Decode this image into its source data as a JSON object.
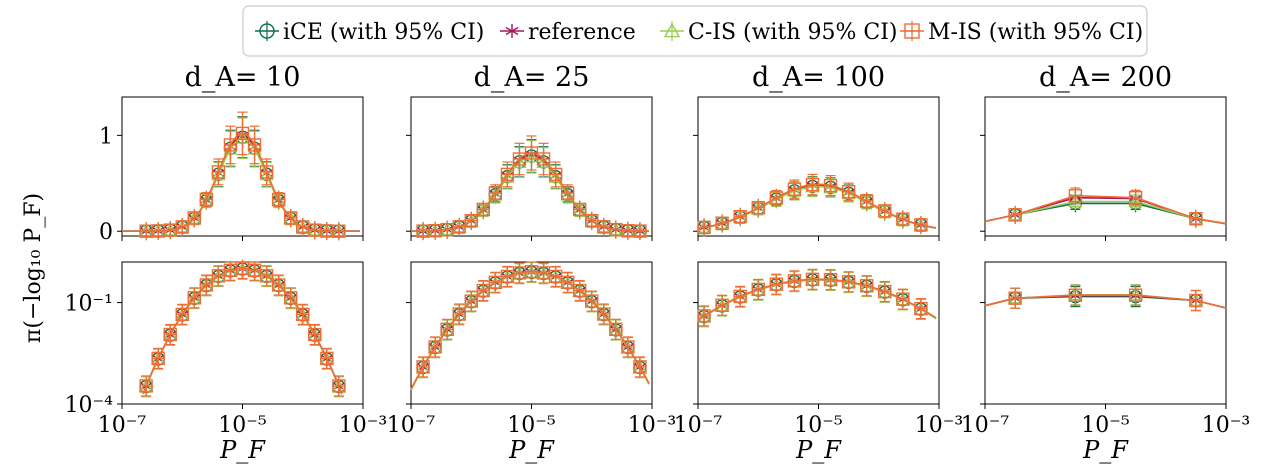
{
  "legend": {
    "entries": [
      {
        "label": "iCE (with 95% CI)",
        "color": "#0b6e4f",
        "marker": "circle"
      },
      {
        "label": "reference",
        "color": "#a3195b",
        "marker": "star"
      },
      {
        "label": "C-IS (with 95% CI)",
        "color": "#9acd55",
        "marker": "triangle"
      },
      {
        "label": "M-IS (with 95% CI)",
        "color": "#ef6c35",
        "marker": "square"
      }
    ]
  },
  "y_axis_label": "π(−log₁₀ P_F)",
  "x_axis_label": "P_F",
  "colors": {
    "iCE": "#0b6e4f",
    "reference": "#a3195b",
    "CIS": "#9acd55",
    "MIS": "#ef6c35"
  },
  "chart_data": [
    {
      "type": "line",
      "title": "d_A= 10",
      "yscale": "linear",
      "xscale": "log",
      "xlabel": "",
      "ylabel": "π(−log₁₀ P_F)",
      "ylim": [
        -0.05,
        1.4
      ],
      "yticks": [
        {
          "value": 0,
          "label": "0"
        },
        {
          "value": 1,
          "label": "1"
        }
      ],
      "xticks": [],
      "mu": 5,
      "sigma": 0.4,
      "amp": 1.0,
      "x_log10": [
        -6.6,
        -6.4,
        -6.2,
        -6.0,
        -5.8,
        -5.6,
        -5.4,
        -5.2,
        -5.0,
        -4.8,
        -4.6,
        -4.4,
        -4.2,
        -4.0,
        -3.8,
        -3.6,
        -3.4
      ]
    },
    {
      "type": "line",
      "title": "d_A= 25",
      "yscale": "linear",
      "xscale": "log",
      "xlabel": "",
      "ylabel": "",
      "ylim": [
        -0.05,
        1.4
      ],
      "yticks": [
        {
          "value": 0,
          "label": ""
        },
        {
          "value": 1,
          "label": ""
        }
      ],
      "xticks": [],
      "mu": 5,
      "sigma": 0.5,
      "amp": 0.8,
      "x_log10": [
        -6.8,
        -6.6,
        -6.4,
        -6.2,
        -6.0,
        -5.8,
        -5.6,
        -5.4,
        -5.2,
        -5.0,
        -4.8,
        -4.6,
        -4.4,
        -4.2,
        -4.0,
        -3.8,
        -3.6,
        -3.4,
        -3.2
      ]
    },
    {
      "type": "line",
      "title": "d_A= 100",
      "yscale": "linear",
      "xscale": "log",
      "xlabel": "",
      "ylabel": "",
      "ylim": [
        -0.05,
        1.4
      ],
      "yticks": [
        {
          "value": 0,
          "label": ""
        },
        {
          "value": 1,
          "label": ""
        }
      ],
      "xticks": [],
      "mu": 5,
      "sigma": 0.85,
      "amp": 0.48,
      "x_log10": [
        -6.9,
        -6.6,
        -6.3,
        -6.0,
        -5.7,
        -5.4,
        -5.1,
        -4.8,
        -4.5,
        -4.2,
        -3.9,
        -3.6,
        -3.3
      ]
    },
    {
      "type": "line",
      "title": "d_A= 200",
      "yscale": "linear",
      "xscale": "log",
      "xlabel": "",
      "ylabel": "",
      "ylim": [
        -0.05,
        1.4
      ],
      "yticks": [
        {
          "value": 0,
          "label": ""
        },
        {
          "value": 1,
          "label": ""
        }
      ],
      "xticks": [],
      "series_points": {
        "x_log10": [
          -6.5,
          -5.5,
          -4.5,
          -3.5
        ],
        "iCE": [
          0.17,
          0.29,
          0.29,
          0.13
        ],
        "reference": [
          0.17,
          0.35,
          0.34,
          0.13
        ],
        "CIS": [
          0.17,
          0.31,
          0.31,
          0.13
        ],
        "MIS": [
          0.17,
          0.37,
          0.35,
          0.13
        ]
      }
    },
    {
      "type": "line",
      "title": "",
      "yscale": "log",
      "xscale": "log",
      "xlabel": "P_F",
      "ylabel": "π(−log₁₀ P_F)",
      "ylim_log10": [
        -4,
        0.2
      ],
      "yticks": [
        {
          "value": -1,
          "label": "10⁻¹"
        },
        {
          "value": -4,
          "label": "10⁻⁴"
        }
      ],
      "xticks": [
        {
          "value": -7,
          "label": "10⁻⁷"
        },
        {
          "value": -5,
          "label": "10⁻⁵"
        },
        {
          "value": -3,
          "label": "10⁻³"
        }
      ],
      "mu": 5,
      "sigma": 0.4,
      "amp": 1.0,
      "x_log10": [
        -6.6,
        -6.4,
        -6.2,
        -6.0,
        -5.8,
        -5.6,
        -5.4,
        -5.2,
        -5.0,
        -4.8,
        -4.6,
        -4.4,
        -4.2,
        -4.0,
        -3.8,
        -3.6,
        -3.4
      ]
    },
    {
      "type": "line",
      "title": "",
      "yscale": "log",
      "xscale": "log",
      "xlabel": "P_F",
      "ylabel": "",
      "ylim_log10": [
        -4,
        0.2
      ],
      "yticks": [
        {
          "value": -1,
          "label": ""
        },
        {
          "value": -4,
          "label": ""
        }
      ],
      "xticks": [
        {
          "value": -7,
          "label": "10⁻⁷"
        },
        {
          "value": -5,
          "label": "10⁻⁵"
        },
        {
          "value": -3,
          "label": "10⁻³"
        }
      ],
      "mu": 5,
      "sigma": 0.5,
      "amp": 0.8,
      "x_log10": [
        -6.8,
        -6.6,
        -6.4,
        -6.2,
        -6.0,
        -5.8,
        -5.6,
        -5.4,
        -5.2,
        -5.0,
        -4.8,
        -4.6,
        -4.4,
        -4.2,
        -4.0,
        -3.8,
        -3.6,
        -3.4,
        -3.2
      ]
    },
    {
      "type": "line",
      "title": "",
      "yscale": "log",
      "xscale": "log",
      "xlabel": "P_F",
      "ylabel": "",
      "ylim_log10": [
        -4,
        0.2
      ],
      "yticks": [
        {
          "value": -1,
          "label": ""
        },
        {
          "value": -4,
          "label": ""
        }
      ],
      "xticks": [
        {
          "value": -7,
          "label": "10⁻⁷"
        },
        {
          "value": -5,
          "label": "10⁻⁵"
        },
        {
          "value": -3,
          "label": "10⁻³"
        }
      ],
      "mu": 5,
      "sigma": 0.85,
      "amp": 0.48,
      "x_log10": [
        -6.9,
        -6.6,
        -6.3,
        -6.0,
        -5.7,
        -5.4,
        -5.1,
        -4.8,
        -4.5,
        -4.2,
        -3.9,
        -3.6,
        -3.3
      ]
    },
    {
      "type": "line",
      "title": "",
      "yscale": "log",
      "xscale": "log",
      "xlabel": "P_F",
      "ylabel": "",
      "ylim_log10": [
        -4,
        0.2
      ],
      "yticks": [
        {
          "value": -1,
          "label": ""
        },
        {
          "value": -4,
          "label": ""
        }
      ],
      "xticks": [
        {
          "value": -7,
          "label": "10⁻⁷"
        },
        {
          "value": -5,
          "label": "10⁻⁵"
        },
        {
          "value": -3,
          "label": "10⁻³"
        }
      ],
      "series_points": {
        "x_log10": [
          -6.5,
          -5.5,
          -4.5,
          -3.5
        ],
        "iCE": [
          0.135,
          0.15,
          0.15,
          0.115
        ],
        "reference": [
          0.135,
          0.16,
          0.16,
          0.115
        ],
        "CIS": [
          0.135,
          0.17,
          0.17,
          0.115
        ],
        "MIS": [
          0.135,
          0.165,
          0.165,
          0.115
        ]
      }
    }
  ]
}
